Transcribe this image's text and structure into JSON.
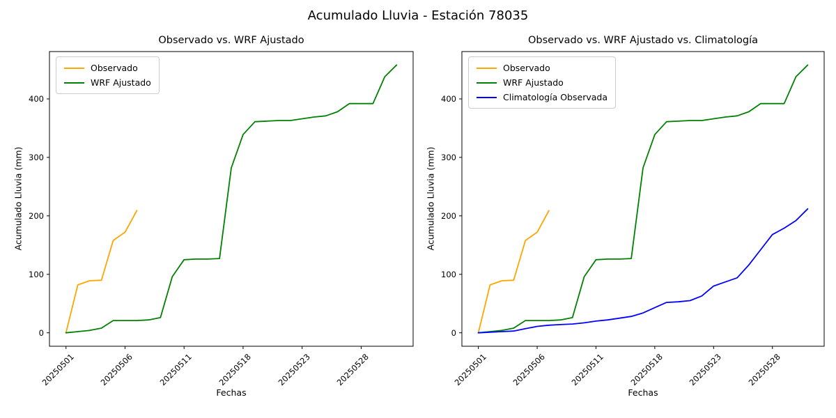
{
  "figure": {
    "title": "Acumulado Lluvia - Estación 78035",
    "background_color": "#ffffff"
  },
  "axes": {
    "xlabel": "Fechas",
    "ylabel": "Acumulado Lluvia (mm)",
    "yticks": [
      0,
      100,
      200,
      300,
      400
    ],
    "xtick_labels": [
      "20250501",
      "20250506",
      "20250511",
      "20250518",
      "20250523",
      "20250528"
    ],
    "xtick_indices": [
      0,
      5,
      10,
      15,
      20,
      25
    ],
    "tick_rotation_deg": 45,
    "grid": false
  },
  "colors": {
    "observado": "#FFA500",
    "wrf_ajustado": "#008000",
    "climatologia": "#0000FF",
    "spine": "#000000"
  },
  "chart_data": [
    {
      "type": "line",
      "title": "Observado vs. WRF Ajustado",
      "xlabel": "Fechas",
      "ylabel": "Acumulado Lluvia (mm)",
      "ylim": [
        -23,
        481
      ],
      "legend_position": "upper left",
      "grid": false,
      "x": [
        "20250501",
        "20250502",
        "20250503",
        "20250504",
        "20250505",
        "20250506",
        "20250507",
        "20250508",
        "20250509",
        "20250510",
        "20250511",
        "20250514",
        "20250515",
        "20250516",
        "20250517",
        "20250518",
        "20250519",
        "20250520",
        "20250521",
        "20250522",
        "20250523",
        "20250524",
        "20250525",
        "20250526",
        "20250527",
        "20250528",
        "20250529",
        "20250530",
        "20250531"
      ],
      "series": [
        {
          "name": "Observado",
          "color": "#FFA500",
          "values": [
            0,
            82,
            89,
            90,
            158,
            172,
            209
          ]
        },
        {
          "name": "WRF Ajustado",
          "color": "#008000",
          "values": [
            0,
            2,
            4,
            8,
            21,
            21,
            21,
            22,
            26,
            96,
            125,
            126,
            126,
            127,
            282,
            339,
            361,
            362,
            363,
            363,
            366,
            369,
            371,
            378,
            392,
            392,
            392,
            438,
            458
          ]
        }
      ]
    },
    {
      "type": "line",
      "title": "Observado vs. WRF Ajustado vs. Climatología",
      "xlabel": "Fechas",
      "ylabel": "Acumulado Lluvia (mm)",
      "ylim": [
        -23,
        481
      ],
      "legend_position": "upper left",
      "grid": false,
      "x": [
        "20250501",
        "20250502",
        "20250503",
        "20250504",
        "20250505",
        "20250506",
        "20250507",
        "20250508",
        "20250509",
        "20250510",
        "20250511",
        "20250514",
        "20250515",
        "20250516",
        "20250517",
        "20250518",
        "20250519",
        "20250520",
        "20250521",
        "20250522",
        "20250523",
        "20250524",
        "20250525",
        "20250526",
        "20250527",
        "20250528",
        "20250529",
        "20250530",
        "20250531"
      ],
      "series": [
        {
          "name": "Observado",
          "color": "#FFA500",
          "values": [
            0,
            82,
            89,
            90,
            158,
            172,
            209
          ]
        },
        {
          "name": "WRF Ajustado",
          "color": "#008000",
          "values": [
            0,
            2,
            4,
            8,
            21,
            21,
            21,
            22,
            26,
            96,
            125,
            126,
            126,
            127,
            282,
            339,
            361,
            362,
            363,
            363,
            366,
            369,
            371,
            378,
            392,
            392,
            392,
            438,
            458
          ]
        },
        {
          "name": "Climatología Observada",
          "color": "#0000FF",
          "values": [
            0,
            1,
            2,
            3,
            7,
            11,
            13,
            14,
            15,
            17,
            20,
            22,
            25,
            28,
            34,
            43,
            52,
            53,
            55,
            63,
            80,
            87,
            94,
            116,
            142,
            168,
            179,
            192,
            212
          ]
        }
      ]
    }
  ]
}
